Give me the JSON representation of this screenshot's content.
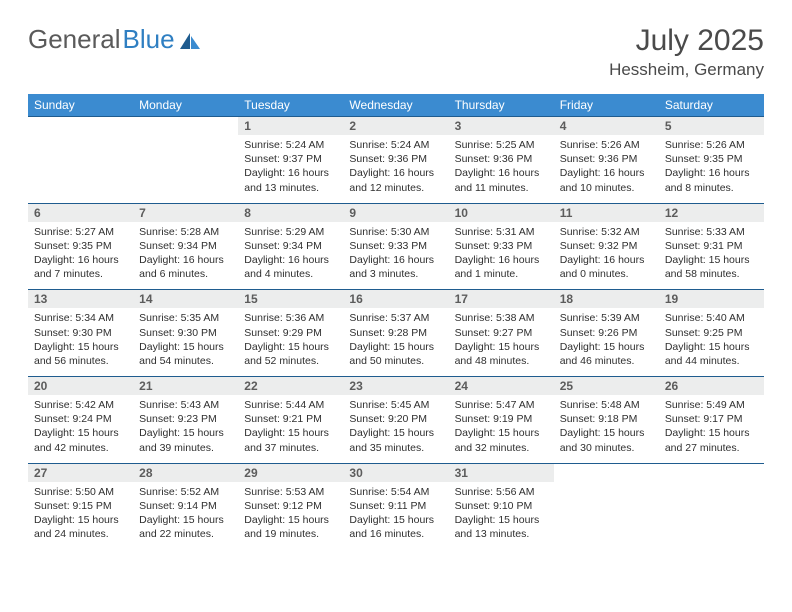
{
  "logo": {
    "part1": "General",
    "part2": "Blue"
  },
  "title": {
    "month": "July 2025",
    "location": "Hessheim, Germany"
  },
  "colors": {
    "header_bg": "#3b8bd0",
    "header_text": "#ffffff",
    "border": "#1f5c8f",
    "daynum_bg": "#eceded",
    "text": "#2f2f2f",
    "logo_gray": "#5a5a5a",
    "logo_blue": "#2f7fc2"
  },
  "weekdays": [
    "Sunday",
    "Monday",
    "Tuesday",
    "Wednesday",
    "Thursday",
    "Friday",
    "Saturday"
  ],
  "weeks": [
    [
      {
        "n": "",
        "sr": "",
        "ss": "",
        "dl": "",
        "empty": true
      },
      {
        "n": "",
        "sr": "",
        "ss": "",
        "dl": "",
        "empty": true
      },
      {
        "n": "1",
        "sr": "Sunrise: 5:24 AM",
        "ss": "Sunset: 9:37 PM",
        "dl": "Daylight: 16 hours and 13 minutes."
      },
      {
        "n": "2",
        "sr": "Sunrise: 5:24 AM",
        "ss": "Sunset: 9:36 PM",
        "dl": "Daylight: 16 hours and 12 minutes."
      },
      {
        "n": "3",
        "sr": "Sunrise: 5:25 AM",
        "ss": "Sunset: 9:36 PM",
        "dl": "Daylight: 16 hours and 11 minutes."
      },
      {
        "n": "4",
        "sr": "Sunrise: 5:26 AM",
        "ss": "Sunset: 9:36 PM",
        "dl": "Daylight: 16 hours and 10 minutes."
      },
      {
        "n": "5",
        "sr": "Sunrise: 5:26 AM",
        "ss": "Sunset: 9:35 PM",
        "dl": "Daylight: 16 hours and 8 minutes."
      }
    ],
    [
      {
        "n": "6",
        "sr": "Sunrise: 5:27 AM",
        "ss": "Sunset: 9:35 PM",
        "dl": "Daylight: 16 hours and 7 minutes."
      },
      {
        "n": "7",
        "sr": "Sunrise: 5:28 AM",
        "ss": "Sunset: 9:34 PM",
        "dl": "Daylight: 16 hours and 6 minutes."
      },
      {
        "n": "8",
        "sr": "Sunrise: 5:29 AM",
        "ss": "Sunset: 9:34 PM",
        "dl": "Daylight: 16 hours and 4 minutes."
      },
      {
        "n": "9",
        "sr": "Sunrise: 5:30 AM",
        "ss": "Sunset: 9:33 PM",
        "dl": "Daylight: 16 hours and 3 minutes."
      },
      {
        "n": "10",
        "sr": "Sunrise: 5:31 AM",
        "ss": "Sunset: 9:33 PM",
        "dl": "Daylight: 16 hours and 1 minute."
      },
      {
        "n": "11",
        "sr": "Sunrise: 5:32 AM",
        "ss": "Sunset: 9:32 PM",
        "dl": "Daylight: 16 hours and 0 minutes."
      },
      {
        "n": "12",
        "sr": "Sunrise: 5:33 AM",
        "ss": "Sunset: 9:31 PM",
        "dl": "Daylight: 15 hours and 58 minutes."
      }
    ],
    [
      {
        "n": "13",
        "sr": "Sunrise: 5:34 AM",
        "ss": "Sunset: 9:30 PM",
        "dl": "Daylight: 15 hours and 56 minutes."
      },
      {
        "n": "14",
        "sr": "Sunrise: 5:35 AM",
        "ss": "Sunset: 9:30 PM",
        "dl": "Daylight: 15 hours and 54 minutes."
      },
      {
        "n": "15",
        "sr": "Sunrise: 5:36 AM",
        "ss": "Sunset: 9:29 PM",
        "dl": "Daylight: 15 hours and 52 minutes."
      },
      {
        "n": "16",
        "sr": "Sunrise: 5:37 AM",
        "ss": "Sunset: 9:28 PM",
        "dl": "Daylight: 15 hours and 50 minutes."
      },
      {
        "n": "17",
        "sr": "Sunrise: 5:38 AM",
        "ss": "Sunset: 9:27 PM",
        "dl": "Daylight: 15 hours and 48 minutes."
      },
      {
        "n": "18",
        "sr": "Sunrise: 5:39 AM",
        "ss": "Sunset: 9:26 PM",
        "dl": "Daylight: 15 hours and 46 minutes."
      },
      {
        "n": "19",
        "sr": "Sunrise: 5:40 AM",
        "ss": "Sunset: 9:25 PM",
        "dl": "Daylight: 15 hours and 44 minutes."
      }
    ],
    [
      {
        "n": "20",
        "sr": "Sunrise: 5:42 AM",
        "ss": "Sunset: 9:24 PM",
        "dl": "Daylight: 15 hours and 42 minutes."
      },
      {
        "n": "21",
        "sr": "Sunrise: 5:43 AM",
        "ss": "Sunset: 9:23 PM",
        "dl": "Daylight: 15 hours and 39 minutes."
      },
      {
        "n": "22",
        "sr": "Sunrise: 5:44 AM",
        "ss": "Sunset: 9:21 PM",
        "dl": "Daylight: 15 hours and 37 minutes."
      },
      {
        "n": "23",
        "sr": "Sunrise: 5:45 AM",
        "ss": "Sunset: 9:20 PM",
        "dl": "Daylight: 15 hours and 35 minutes."
      },
      {
        "n": "24",
        "sr": "Sunrise: 5:47 AM",
        "ss": "Sunset: 9:19 PM",
        "dl": "Daylight: 15 hours and 32 minutes."
      },
      {
        "n": "25",
        "sr": "Sunrise: 5:48 AM",
        "ss": "Sunset: 9:18 PM",
        "dl": "Daylight: 15 hours and 30 minutes."
      },
      {
        "n": "26",
        "sr": "Sunrise: 5:49 AM",
        "ss": "Sunset: 9:17 PM",
        "dl": "Daylight: 15 hours and 27 minutes."
      }
    ],
    [
      {
        "n": "27",
        "sr": "Sunrise: 5:50 AM",
        "ss": "Sunset: 9:15 PM",
        "dl": "Daylight: 15 hours and 24 minutes."
      },
      {
        "n": "28",
        "sr": "Sunrise: 5:52 AM",
        "ss": "Sunset: 9:14 PM",
        "dl": "Daylight: 15 hours and 22 minutes."
      },
      {
        "n": "29",
        "sr": "Sunrise: 5:53 AM",
        "ss": "Sunset: 9:12 PM",
        "dl": "Daylight: 15 hours and 19 minutes."
      },
      {
        "n": "30",
        "sr": "Sunrise: 5:54 AM",
        "ss": "Sunset: 9:11 PM",
        "dl": "Daylight: 15 hours and 16 minutes."
      },
      {
        "n": "31",
        "sr": "Sunrise: 5:56 AM",
        "ss": "Sunset: 9:10 PM",
        "dl": "Daylight: 15 hours and 13 minutes."
      },
      {
        "n": "",
        "sr": "",
        "ss": "",
        "dl": "",
        "empty": true
      },
      {
        "n": "",
        "sr": "",
        "ss": "",
        "dl": "",
        "empty": true
      }
    ]
  ]
}
